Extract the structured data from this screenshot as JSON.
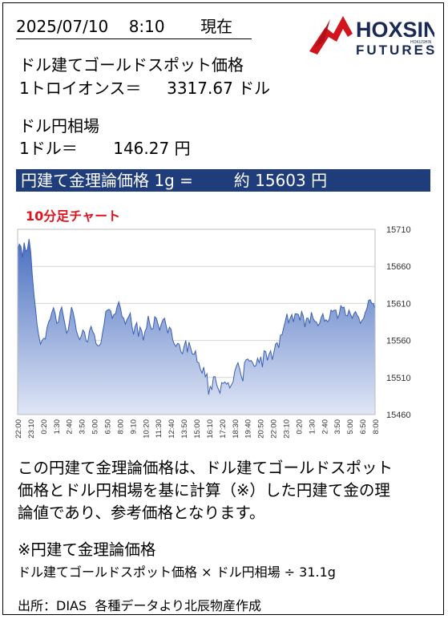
{
  "header": {
    "timestamp": "2025/07/10    8:10       現在"
  },
  "logo": {
    "brand": "HOXSIN",
    "sub_brand": "FUTURES",
    "tiny": "HOKUSHIN"
  },
  "gold_spot": {
    "label": "ドル建てゴールドスポット価格",
    "value_line": "1トロイオンス＝     3317.67 ドル"
  },
  "fx": {
    "label": "ドル円相場",
    "value_line": "1ドル＝       146.27 円"
  },
  "banner": {
    "text": "円建て金理論価格 1g =        約 15603 円"
  },
  "chart_title": "10分足チャート",
  "chart_data": {
    "type": "area",
    "title": "10分足チャート",
    "xlabel": "",
    "ylabel": "",
    "ylim": [
      15460,
      15710
    ],
    "yticks": [
      15460,
      15510,
      15560,
      15610,
      15660,
      15710
    ],
    "x_tick_labels": [
      "22:00",
      "23:10",
      "0:20",
      "1:30",
      "2:40",
      "3:50",
      "5:00",
      "6:50",
      "8:00",
      "9:10",
      "10:20",
      "11:30",
      "12:40",
      "13:50",
      "15:00",
      "16:10",
      "17:20",
      "18:30",
      "19:40",
      "20:50",
      "22:00",
      "23:10",
      "0:20",
      "1:30",
      "2:40",
      "3:50",
      "5:00",
      "6:50",
      "8:00"
    ],
    "grid": true,
    "colors": {
      "fill_top": "#4a6fc0",
      "fill_bottom": "#dfe6f5",
      "grid": "#d6d6d6"
    },
    "values": [
      15682,
      15690,
      15687,
      15672,
      15692,
      15680,
      15683,
      15697,
      15680,
      15648,
      15622,
      15602,
      15580,
      15566,
      15555,
      15560,
      15563,
      15562,
      15577,
      15585,
      15589,
      15598,
      15604,
      15596,
      15583,
      15585,
      15599,
      15605,
      15593,
      15582,
      15570,
      15574,
      15589,
      15605,
      15598,
      15587,
      15573,
      15566,
      15561,
      15566,
      15574,
      15571,
      15559,
      15558,
      15573,
      15579,
      15572,
      15568,
      15556,
      15553,
      15553,
      15556,
      15570,
      15582,
      15599,
      15601,
      15602,
      15600,
      15590,
      15595,
      15596,
      15606,
      15612,
      15604,
      15592,
      15590,
      15582,
      15588,
      15592,
      15597,
      15580,
      15568,
      15579,
      15584,
      15565,
      15578,
      15573,
      15560,
      15572,
      15577,
      15593,
      15582,
      15575,
      15576,
      15592,
      15590,
      15582,
      15574,
      15582,
      15588,
      15590,
      15580,
      15570,
      15578,
      15575,
      15561,
      15555,
      15552,
      15556,
      15555,
      15545,
      15542,
      15552,
      15560,
      15544,
      15558,
      15550,
      15542,
      15541,
      15546,
      15531,
      15530,
      15521,
      15516,
      15524,
      15511,
      15515,
      15487,
      15498,
      15494,
      15511,
      15511,
      15500,
      15494,
      15489,
      15503,
      15502,
      15504,
      15501,
      15503,
      15496,
      15500,
      15504,
      15518,
      15525,
      15530,
      15522,
      15512,
      15505,
      15530,
      15534,
      15535,
      15532,
      15533,
      15530,
      15525,
      15526,
      15536,
      15530,
      15538,
      15524,
      15546,
      15545,
      15533,
      15541,
      15546,
      15534,
      15544,
      15555,
      15557,
      15550,
      15567,
      15568,
      15577,
      15586,
      15596,
      15584,
      15590,
      15595,
      15585,
      15596,
      15596,
      15595,
      15587,
      15599,
      15593,
      15578,
      15590,
      15590,
      15583,
      15598,
      15590,
      15586,
      15585,
      15580,
      15583,
      15591,
      15596,
      15586,
      15588,
      15585,
      15589,
      15601,
      15599,
      15601,
      15601,
      15590,
      15595,
      15607,
      15604,
      15605,
      15594,
      15593,
      15601,
      15595,
      15590,
      15596,
      15599,
      15594,
      15591,
      15583,
      15587,
      15590,
      15598,
      15603,
      15614,
      15615,
      15610,
      15610,
      15603
    ]
  },
  "note": {
    "lines": [
      "この円建て金理論価格は、ドル建てゴールドスポット",
      "価格とドル円相場を基に計算（※）した円建て金の理",
      "論値であり、参考価格となります。"
    ]
  },
  "formula": {
    "heading": "※円建て金理論価格",
    "text": "ドル建てゴールドスポット価格 × ドル円相場 ÷ 31.1g"
  },
  "source": {
    "text": "出所：DIAS  各種データより北辰物産作成"
  }
}
